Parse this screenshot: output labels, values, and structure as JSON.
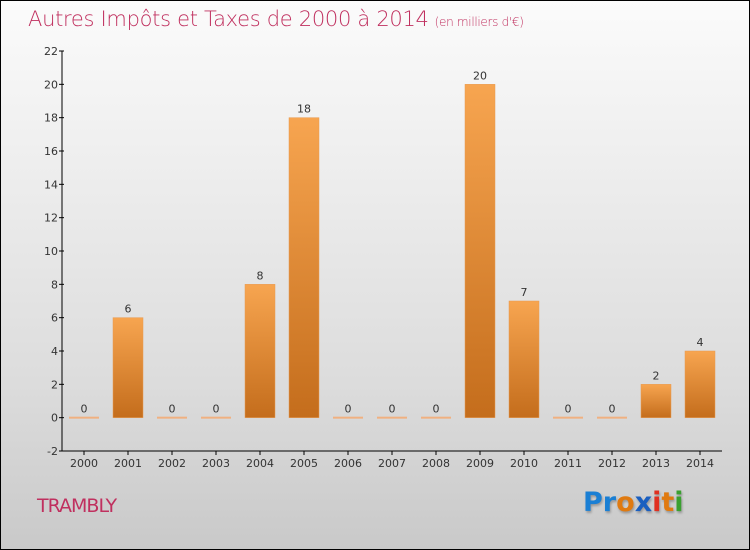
{
  "chart_data": {
    "type": "bar",
    "title": "Autres Impôts et Taxes de 2000 à 2014",
    "unit": "(en milliers d'€)",
    "categories": [
      "2000",
      "2001",
      "2002",
      "2003",
      "2004",
      "2005",
      "2006",
      "2007",
      "2008",
      "2009",
      "2010",
      "2011",
      "2012",
      "2013",
      "2014"
    ],
    "values": [
      0,
      6,
      0,
      0,
      8,
      18,
      0,
      0,
      0,
      20,
      7,
      0,
      0,
      2,
      4
    ],
    "ylim": [
      -2,
      22
    ],
    "yticks": [
      -2,
      0,
      2,
      4,
      6,
      8,
      10,
      12,
      14,
      16,
      18,
      20,
      22
    ],
    "xlabel": "",
    "ylabel": "",
    "grid": false,
    "bar_color_top": "#f7a550",
    "bar_color_bottom": "#c46d1c"
  },
  "location": "TRAMBLY",
  "logo": [
    "P",
    "r",
    "o",
    "x",
    "i",
    "t",
    "i"
  ],
  "logo_colors": [
    "#1a7fd4",
    "#1a7fd4",
    "#e07a10",
    "#1a5fc0",
    "#e03020",
    "#e07a10",
    "#3aa030"
  ]
}
